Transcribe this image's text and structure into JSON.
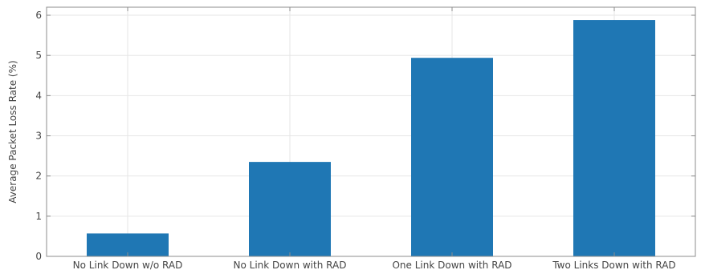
{
  "chart_data": {
    "type": "bar",
    "title": "",
    "xlabel": "",
    "ylabel": "Average Packet Loss Rate (%)",
    "categories": [
      "No Link Down w/o RAD",
      "No Link Down with RAD",
      "One Link Down with RAD",
      "Two Links Down with RAD"
    ],
    "values": [
      0.57,
      2.35,
      4.94,
      5.88
    ],
    "ylim": [
      0,
      6.2
    ],
    "yticks": [
      "0",
      "1",
      "2",
      "3",
      "4",
      "5",
      "6"
    ],
    "grid": true,
    "bar_color": "#1f77b4"
  }
}
